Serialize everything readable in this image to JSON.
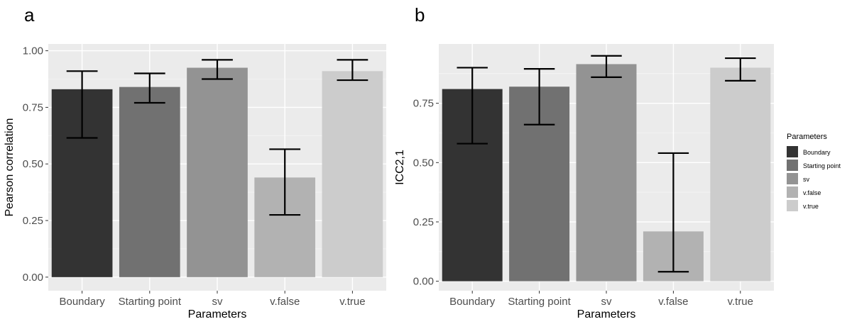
{
  "chart_data": [
    {
      "type": "bar",
      "panel_label": "a",
      "xlabel": "Parameters",
      "ylabel": "Pearson correlation",
      "categories": [
        "Boundary",
        "Starting point",
        "sv",
        "v.false",
        "v.true"
      ],
      "values": [
        0.83,
        0.84,
        0.925,
        0.44,
        0.91
      ],
      "error_low": [
        0.615,
        0.77,
        0.875,
        0.275,
        0.87
      ],
      "error_high": [
        0.91,
        0.9,
        0.96,
        0.565,
        0.96
      ],
      "ylim": [
        -0.06,
        1.03
      ],
      "yticks": [
        0,
        0.25,
        0.5,
        0.75,
        1.0
      ],
      "ytick_labels": [
        "0.00",
        "0.25",
        "0.50",
        "0.75",
        "1.00"
      ],
      "colors": [
        "#333333",
        "#717171",
        "#939393",
        "#b2b2b2",
        "#cccccc"
      ],
      "grid": true,
      "legend": false
    },
    {
      "type": "bar",
      "panel_label": "b",
      "xlabel": "Parameters",
      "ylabel": "ICC2,1",
      "categories": [
        "Boundary",
        "Starting point",
        "sv",
        "v.false",
        "v.true"
      ],
      "values": [
        0.81,
        0.82,
        0.915,
        0.21,
        0.9
      ],
      "error_low": [
        0.58,
        0.66,
        0.86,
        0.04,
        0.845
      ],
      "error_high": [
        0.9,
        0.895,
        0.95,
        0.54,
        0.94
      ],
      "ylim": [
        -0.04,
        1.0
      ],
      "yticks": [
        0,
        0.25,
        0.5,
        0.75
      ],
      "ytick_labels": [
        "0.00",
        "0.25",
        "0.50",
        "0.75"
      ],
      "colors": [
        "#333333",
        "#717171",
        "#939393",
        "#b2b2b2",
        "#cccccc"
      ],
      "grid": true,
      "legend": true,
      "legend_title": "Parameters",
      "legend_position": "right",
      "legend_entries": [
        "Boundary",
        "Starting point",
        "sv",
        "v.false",
        "v.true"
      ]
    }
  ]
}
